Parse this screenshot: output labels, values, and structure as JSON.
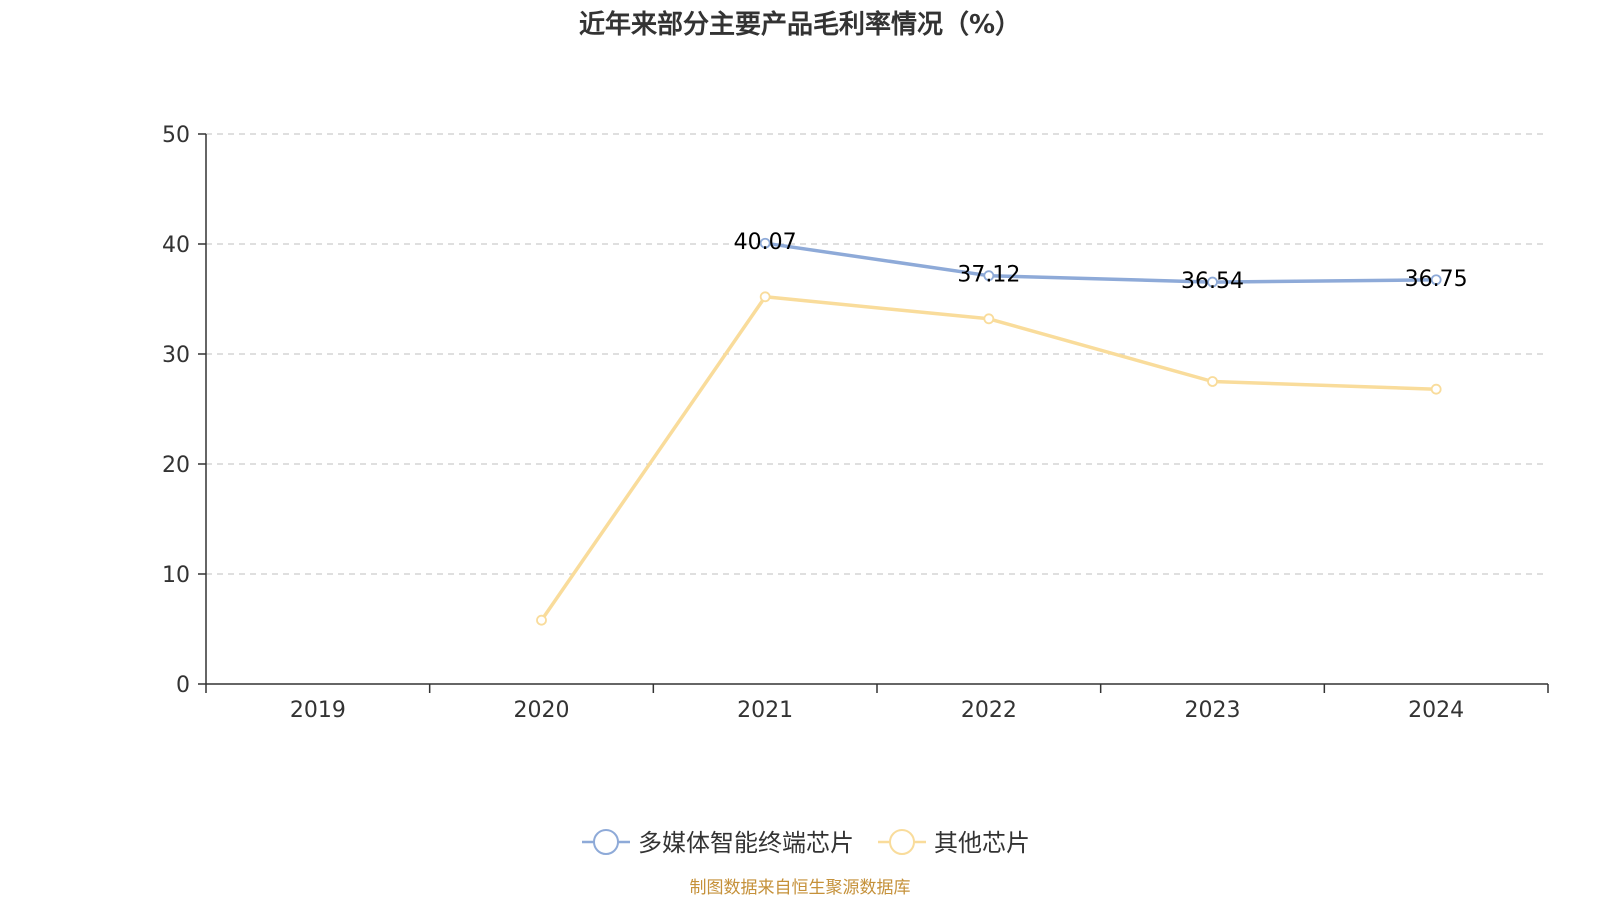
{
  "chart_data": {
    "type": "line",
    "title": "近年来部分主要产品毛利率情况（%）",
    "xlabel": "",
    "ylabel": "",
    "categories": [
      "2019",
      "2020",
      "2021",
      "2022",
      "2023",
      "2024"
    ],
    "ylim": [
      0,
      50
    ],
    "yticks": [
      0,
      10,
      20,
      30,
      40,
      50
    ],
    "grid": true,
    "legend_position": "bottom",
    "series": [
      {
        "name": "多媒体智能终端芯片",
        "color": "#8eaad8",
        "values": [
          null,
          null,
          40.07,
          37.12,
          36.54,
          36.75
        ],
        "labels": [
          null,
          null,
          "40.07",
          "37.12",
          "36.54",
          "36.75"
        ]
      },
      {
        "name": "其他芯片",
        "color": "#f9dc9b",
        "values": [
          null,
          5.8,
          35.2,
          33.2,
          27.5,
          26.8
        ],
        "labels": [
          null,
          null,
          null,
          null,
          null,
          null
        ]
      }
    ],
    "source_note": "制图数据来自恒生聚源数据库"
  }
}
